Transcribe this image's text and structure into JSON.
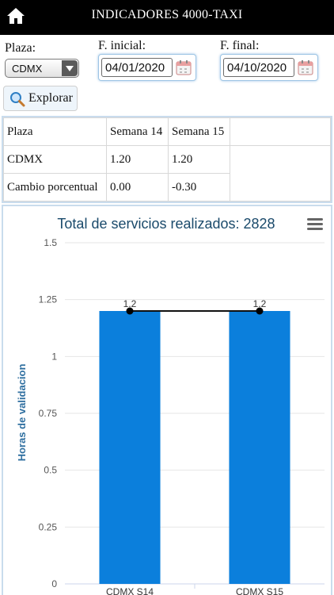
{
  "header": {
    "title": "INDICADORES 4000-TAXI",
    "home_icon": "home-icon"
  },
  "filters": {
    "plaza_label": "Plaza:",
    "plaza_value": "CDMX",
    "start_label": "F. inicial:",
    "start_value": "04/01/2020",
    "end_label": "F. final:",
    "end_value": "04/10/2020",
    "explore_label": "Explorar"
  },
  "table": {
    "headers": [
      "Plaza",
      "Semana 14",
      "Semana 15"
    ],
    "rows": [
      [
        "CDMX",
        "1.20",
        "1.20"
      ],
      [
        "Cambio porcentual",
        "0.00",
        "-0.30"
      ]
    ]
  },
  "chart_data": {
    "type": "bar",
    "title": "Total de servicios realizados: 2828",
    "ylabel": "Horas de validacion",
    "categories": [
      "CDMX S14",
      "CDMX S15"
    ],
    "values": [
      1.2,
      1.2
    ],
    "data_labels": [
      "1.2",
      "1.2"
    ],
    "yticks": [
      "0",
      "0.25",
      "0.5",
      "0.75",
      "1",
      "1.25",
      "1.5"
    ],
    "ylim": [
      0,
      1.5
    ],
    "bar_color": "#0b7fdc",
    "line_color": "#111111"
  }
}
